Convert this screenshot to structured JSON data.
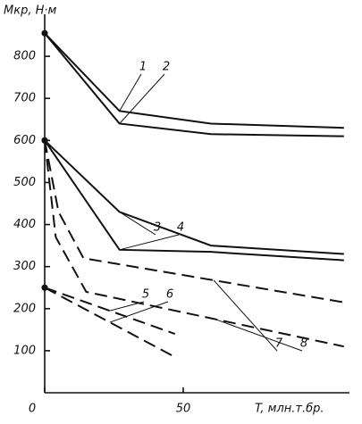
{
  "chart_data": {
    "type": "line",
    "y_label": "Mкр, Н·м",
    "x_label": "T, млн.т.бр.",
    "xlim": [
      0,
      110
    ],
    "ylim": [
      0,
      900
    ],
    "xticks": [
      0,
      50
    ],
    "yticks": [
      100,
      200,
      300,
      400,
      500,
      600,
      700,
      800
    ],
    "color": "#111111",
    "series": [
      {
        "name": "1",
        "dashed": false,
        "x": [
          0,
          27,
          60,
          108
        ],
        "values": [
          855,
          670,
          640,
          630
        ]
      },
      {
        "name": "2",
        "dashed": false,
        "x": [
          0,
          27,
          60,
          108
        ],
        "values": [
          855,
          640,
          615,
          610
        ]
      },
      {
        "name": "3",
        "dashed": false,
        "x": [
          0,
          27,
          60,
          108
        ],
        "values": [
          600,
          430,
          350,
          330
        ]
      },
      {
        "name": "4",
        "dashed": false,
        "x": [
          0,
          27,
          60,
          108
        ],
        "values": [
          600,
          340,
          335,
          315
        ]
      },
      {
        "name": "5",
        "dashed": true,
        "x": [
          0,
          47
        ],
        "values": [
          250,
          140
        ]
      },
      {
        "name": "6",
        "dashed": true,
        "x": [
          0,
          47
        ],
        "values": [
          250,
          85
        ]
      },
      {
        "name": "7",
        "dashed": true,
        "x": [
          0,
          5,
          14,
          108
        ],
        "values": [
          600,
          430,
          320,
          215
        ]
      },
      {
        "name": "8",
        "dashed": true,
        "x": [
          0,
          4,
          15,
          108
        ],
        "values": [
          600,
          370,
          240,
          110
        ]
      }
    ]
  }
}
